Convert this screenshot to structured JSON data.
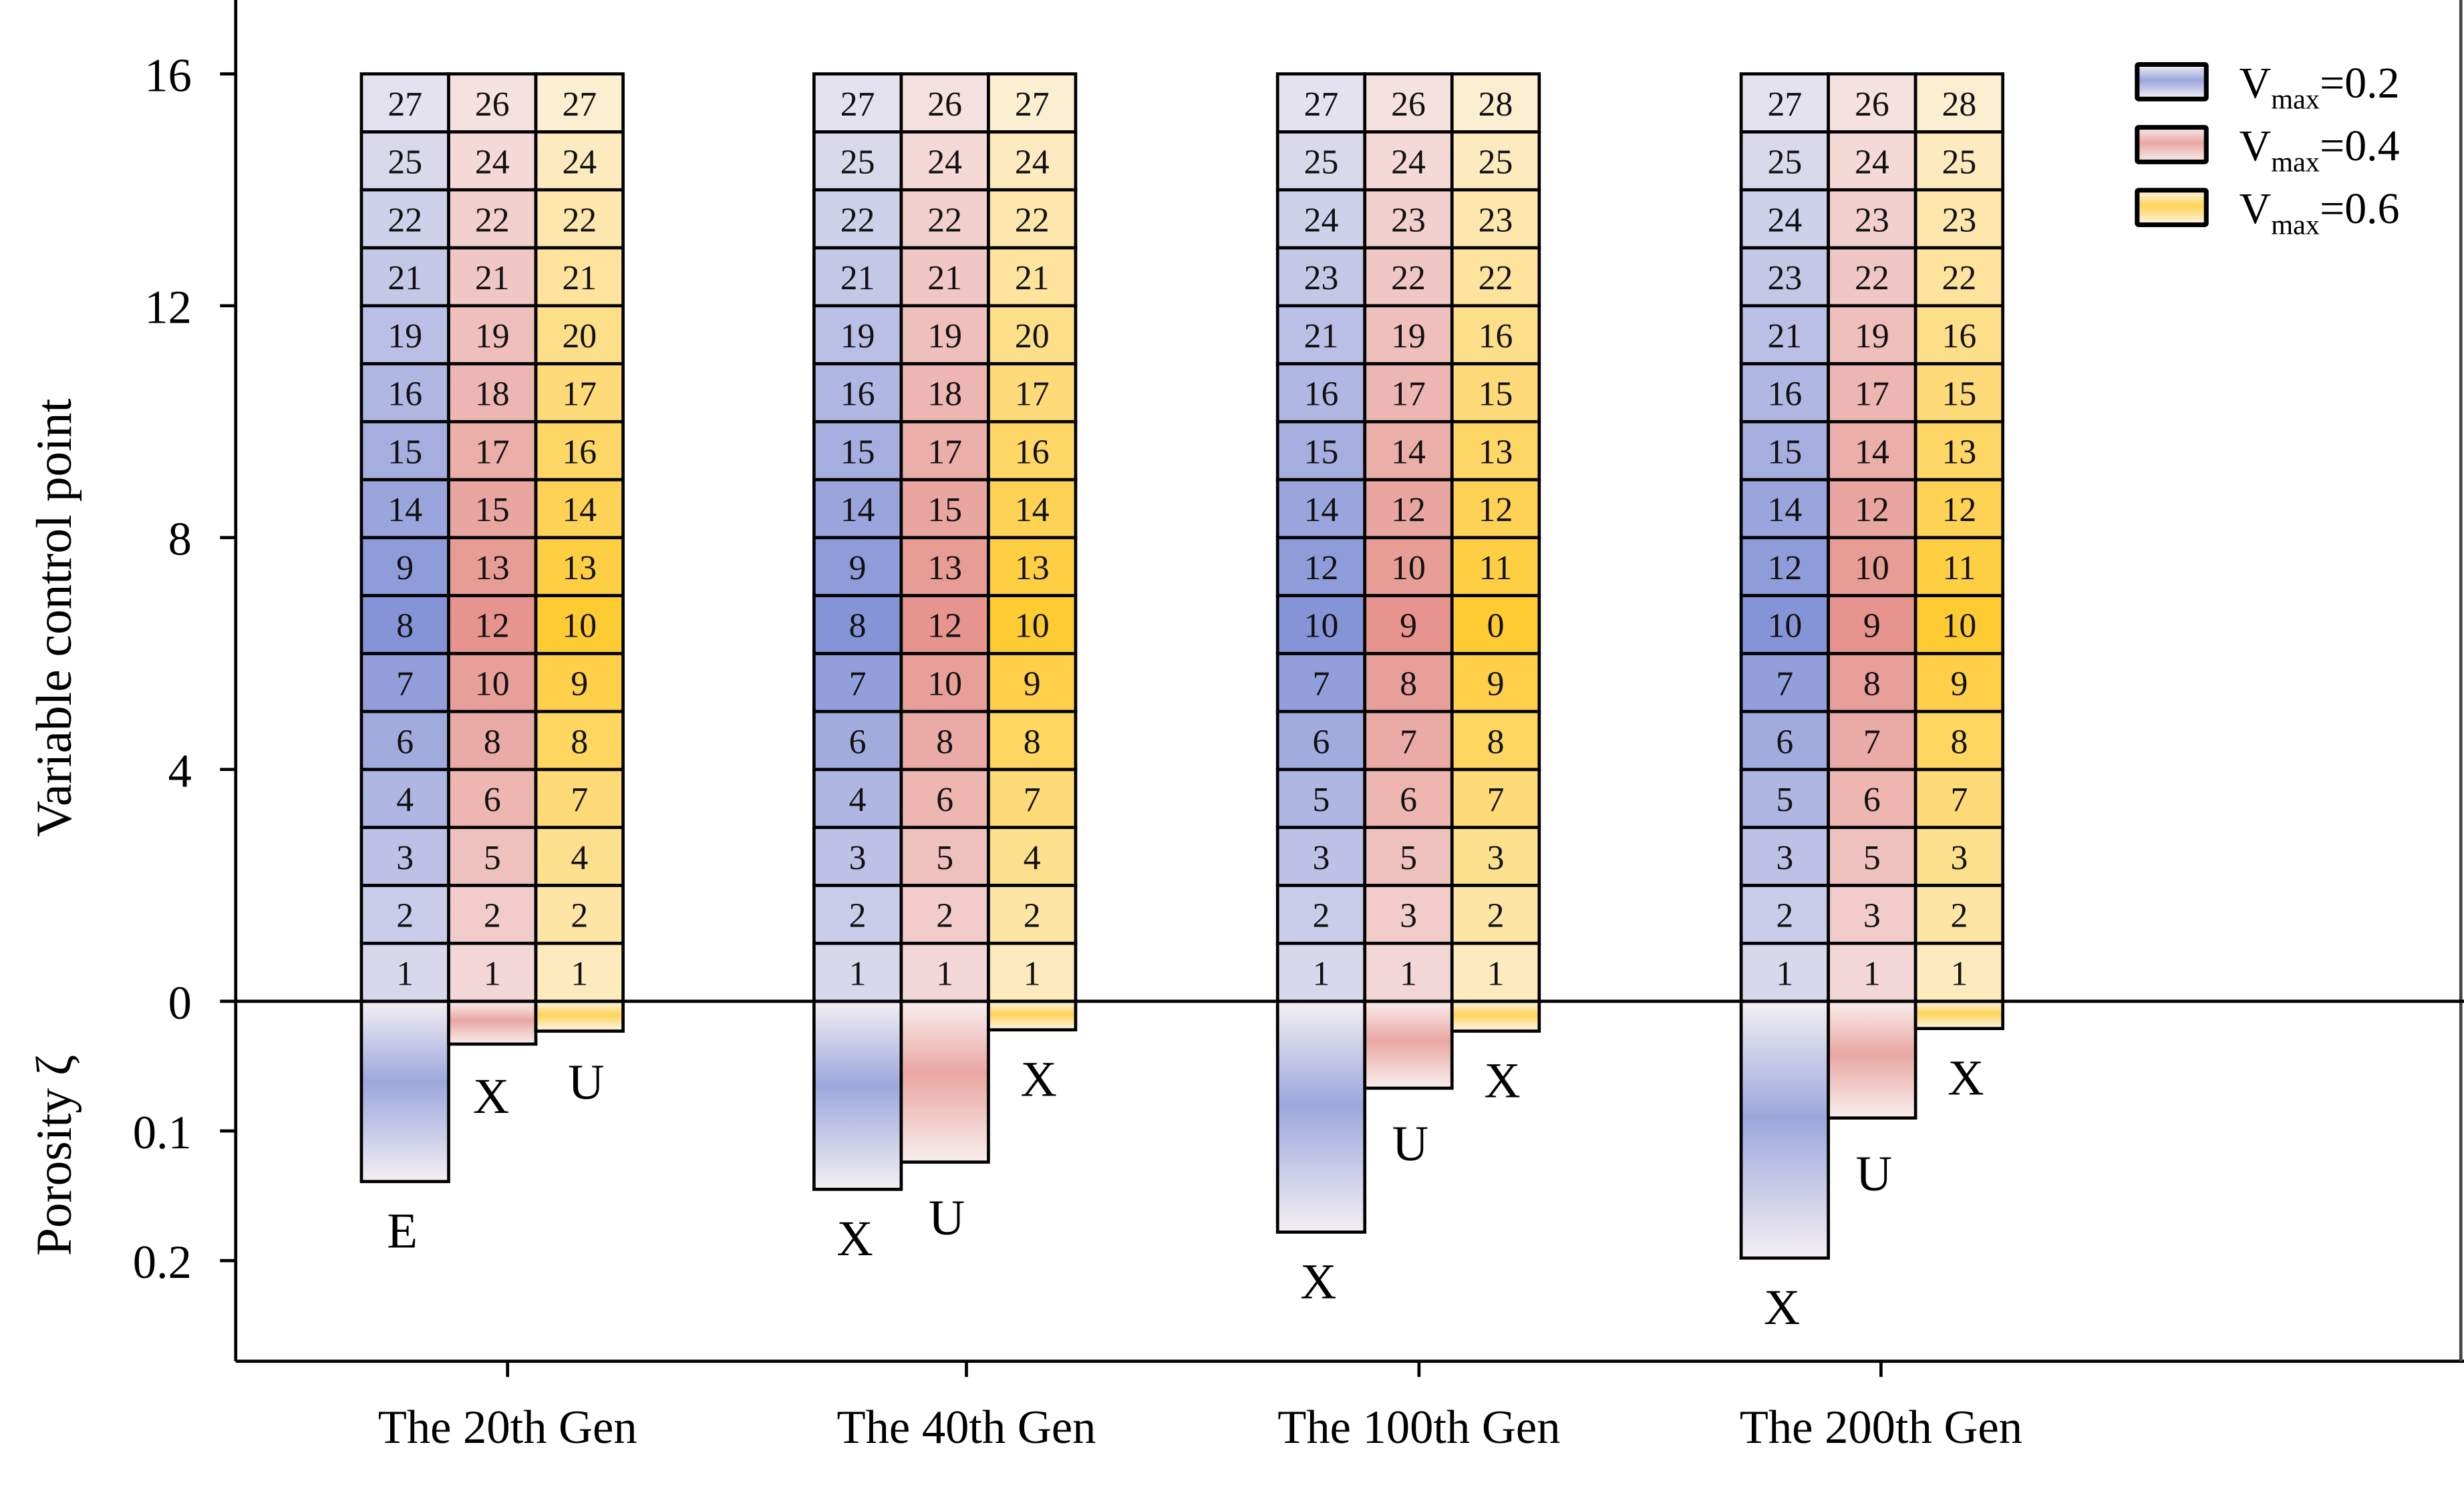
{
  "chart_data": {
    "type": "bar",
    "title": "",
    "ylabel_top": "Variable control point",
    "ylabel_bottom": "Porosity ζ",
    "y_top_ticks": [
      "0",
      "4",
      "8",
      "12",
      "16"
    ],
    "y_top_range": [
      0,
      16
    ],
    "y_bottom_ticks": [
      "0.1",
      "0.2"
    ],
    "y_bottom_range": [
      0,
      0.28
    ],
    "categories": [
      "The 20th Gen",
      "The 40th Gen",
      "The 100th Gen",
      "The 200th Gen"
    ],
    "legend": {
      "placement": "top-right",
      "entries": [
        {
          "main": "V",
          "sub": "max",
          "rest": "=0.2"
        },
        {
          "main": "V",
          "sub": "max",
          "rest": "=0.4"
        },
        {
          "main": "V",
          "sub": "max",
          "rest": "=0.6"
        }
      ]
    },
    "series": [
      {
        "name": "Vmax=0.2",
        "color": "#7f8fd6",
        "light": "#f4eff3"
      },
      {
        "name": "Vmax=0.4",
        "color": "#e58f88",
        "light": "#f8eeee"
      },
      {
        "name": "Vmax=0.6",
        "color": "#ffc928",
        "light": "#fcf5eb"
      }
    ],
    "groups": [
      {
        "label": "The 20th Gen",
        "columns": [
          {
            "cells": [
              1,
              2,
              3,
              4,
              6,
              7,
              8,
              9,
              14,
              15,
              16,
              19,
              21,
              22,
              25,
              27
            ],
            "porosity": 0.139,
            "porosity_label": "E"
          },
          {
            "cells": [
              1,
              2,
              5,
              6,
              8,
              10,
              12,
              13,
              15,
              17,
              18,
              19,
              21,
              22,
              24,
              26
            ],
            "porosity": 0.033,
            "porosity_label": "X"
          },
          {
            "cells": [
              1,
              2,
              4,
              7,
              8,
              9,
              10,
              13,
              14,
              16,
              17,
              20,
              21,
              22,
              24,
              27
            ],
            "porosity": 0.023,
            "porosity_label": "U"
          }
        ]
      },
      {
        "label": "The 40th Gen",
        "columns": [
          {
            "cells": [
              1,
              2,
              3,
              4,
              6,
              7,
              8,
              9,
              14,
              15,
              16,
              19,
              21,
              22,
              25,
              27
            ],
            "porosity": 0.145,
            "porosity_label": "X"
          },
          {
            "cells": [
              1,
              2,
              5,
              6,
              8,
              10,
              12,
              13,
              15,
              17,
              18,
              19,
              21,
              22,
              24,
              26
            ],
            "porosity": 0.124,
            "porosity_label": "U"
          },
          {
            "cells": [
              1,
              2,
              4,
              7,
              8,
              9,
              10,
              13,
              14,
              16,
              17,
              20,
              21,
              22,
              24,
              27
            ],
            "porosity": 0.022,
            "porosity_label": "X"
          }
        ]
      },
      {
        "label": "The 100th Gen",
        "columns": [
          {
            "cells": [
              1,
              2,
              3,
              5,
              6,
              7,
              10,
              12,
              14,
              15,
              16,
              21,
              23,
              24,
              25,
              27
            ],
            "porosity": 0.178,
            "porosity_label": "X"
          },
          {
            "cells": [
              1,
              3,
              5,
              6,
              7,
              8,
              9,
              10,
              12,
              14,
              17,
              19,
              22,
              23,
              24,
              26
            ],
            "porosity": 0.067,
            "porosity_label": "U"
          },
          {
            "cells": [
              1,
              2,
              3,
              7,
              8,
              9,
              0,
              11,
              12,
              13,
              15,
              16,
              22,
              23,
              25,
              28
            ],
            "porosity": 0.023,
            "porosity_label": "X"
          }
        ]
      },
      {
        "label": "The 200th Gen",
        "columns": [
          {
            "cells": [
              1,
              2,
              3,
              5,
              6,
              7,
              10,
              12,
              14,
              15,
              16,
              21,
              23,
              24,
              25,
              27
            ],
            "porosity": 0.198,
            "porosity_label": "X"
          },
          {
            "cells": [
              1,
              3,
              5,
              6,
              7,
              8,
              9,
              10,
              12,
              14,
              17,
              19,
              22,
              23,
              24,
              26
            ],
            "porosity": 0.09,
            "porosity_label": "U"
          },
          {
            "cells": [
              1,
              2,
              3,
              7,
              8,
              9,
              10,
              11,
              12,
              13,
              15,
              16,
              22,
              23,
              25,
              28
            ],
            "porosity": 0.021,
            "porosity_label": "X"
          }
        ]
      }
    ]
  }
}
